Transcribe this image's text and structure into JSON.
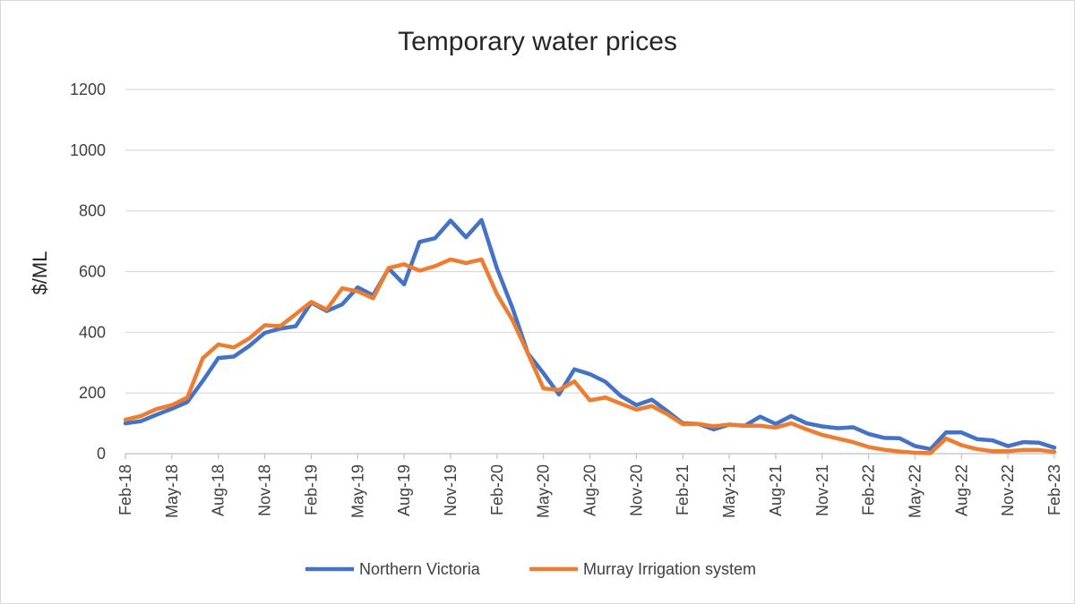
{
  "chart_data": {
    "type": "line",
    "title": "Temporary water prices",
    "xlabel": "",
    "ylabel": "$/ML",
    "ylim": [
      0,
      1200
    ],
    "yticks": [
      0,
      200,
      400,
      600,
      800,
      1000,
      1200
    ],
    "grid": true,
    "legend_position": "bottom",
    "xtick_labels": [
      "Feb-18",
      "May-18",
      "Aug-18",
      "Nov-18",
      "Feb-19",
      "May-19",
      "Aug-19",
      "Nov-19",
      "Feb-20",
      "May-20",
      "Aug-20",
      "Nov-20",
      "Feb-21",
      "May-21",
      "Aug-21",
      "Nov-21",
      "Feb-22",
      "May-22",
      "Aug-22",
      "Nov-22",
      "Feb-23"
    ],
    "x": [
      "Feb-18",
      "Mar-18",
      "Apr-18",
      "May-18",
      "Jun-18",
      "Jul-18",
      "Aug-18",
      "Sep-18",
      "Oct-18",
      "Nov-18",
      "Dec-18",
      "Jan-19",
      "Feb-19",
      "Mar-19",
      "Apr-19",
      "May-19",
      "Jun-19",
      "Jul-19",
      "Aug-19",
      "Sep-19",
      "Oct-19",
      "Nov-19",
      "Dec-19",
      "Jan-20",
      "Feb-20",
      "Mar-20",
      "Apr-20",
      "May-20",
      "Jun-20",
      "Jul-20",
      "Aug-20",
      "Sep-20",
      "Oct-20",
      "Nov-20",
      "Dec-20",
      "Jan-21",
      "Feb-21",
      "Mar-21",
      "Apr-21",
      "May-21",
      "Jun-21",
      "Jul-21",
      "Aug-21",
      "Sep-21",
      "Oct-21",
      "Nov-21",
      "Dec-21",
      "Jan-22",
      "Feb-22",
      "Mar-22",
      "Apr-22",
      "May-22",
      "Jun-22",
      "Jul-22",
      "Aug-22",
      "Sep-22",
      "Oct-22",
      "Nov-22",
      "Dec-22",
      "Jan-23",
      "Feb-23"
    ],
    "series": [
      {
        "name": "Northern Victoria",
        "color": "#4472C4",
        "values": [
          100,
          107,
          128,
          148,
          170,
          240,
          315,
          320,
          355,
          398,
          412,
          420,
          498,
          470,
          492,
          548,
          522,
          610,
          558,
          698,
          710,
          768,
          713,
          770,
          610,
          480,
          330,
          265,
          195,
          278,
          262,
          237,
          190,
          160,
          178,
          140,
          100,
          98,
          80,
          96,
          92,
          122,
          98,
          124,
          100,
          90,
          84,
          87,
          65,
          52,
          51,
          25,
          15,
          70,
          70,
          48,
          44,
          25,
          38,
          36,
          20
        ]
      },
      {
        "name": "Murray Irrigation system",
        "color": "#ED7D31",
        "values": [
          112,
          124,
          147,
          160,
          185,
          315,
          360,
          350,
          380,
          423,
          420,
          460,
          500,
          475,
          545,
          535,
          512,
          612,
          624,
          603,
          618,
          640,
          628,
          640,
          525,
          440,
          330,
          215,
          210,
          238,
          176,
          185,
          165,
          145,
          157,
          130,
          97,
          98,
          90,
          96,
          92,
          92,
          86,
          100,
          80,
          62,
          50,
          38,
          22,
          13,
          7,
          3,
          2,
          50,
          28,
          15,
          8,
          8,
          12,
          12,
          6
        ]
      }
    ]
  }
}
